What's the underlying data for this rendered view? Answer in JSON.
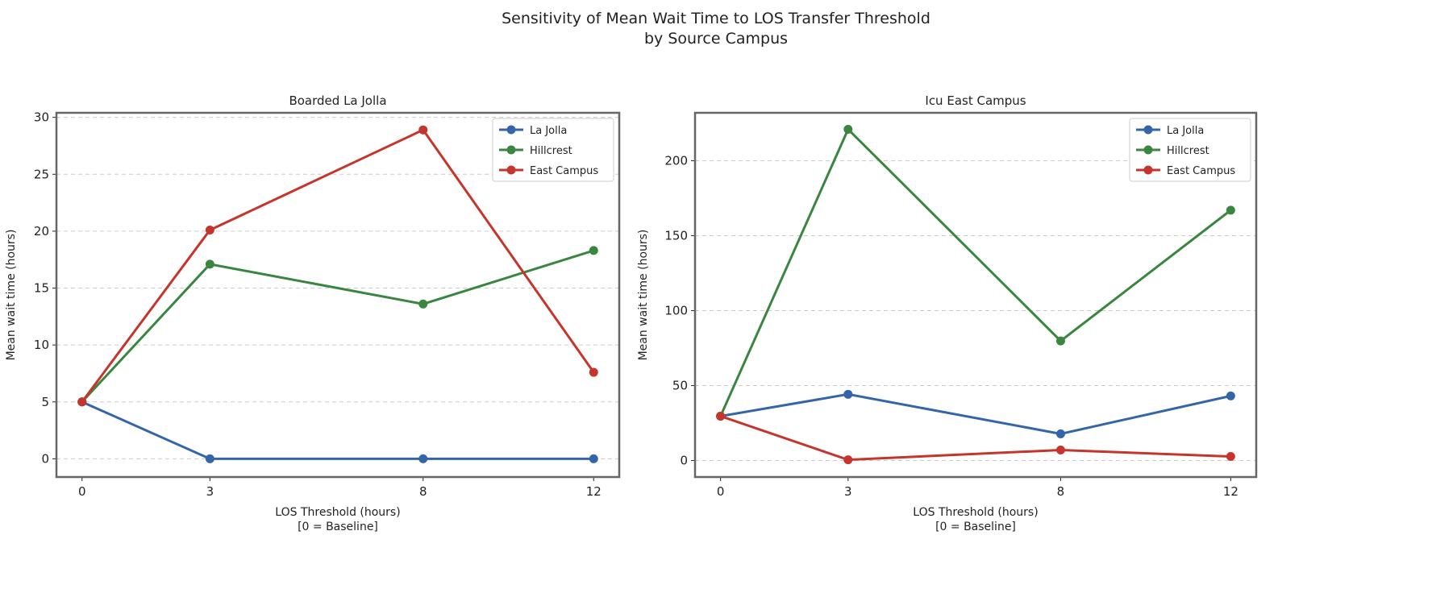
{
  "title_lines": [
    "Sensitivity of Mean Wait Time to LOS Transfer Threshold",
    "by Source Campus"
  ],
  "colors": {
    "La Jolla": "#3465a8",
    "Hillcrest": "#3a8540",
    "East Campus": "#c5352b",
    "frame": "#666666",
    "grid": "#cccccc"
  },
  "chart_data": [
    {
      "type": "line",
      "title": "Boarded La Jolla",
      "xlabel_lines": [
        "LOS Threshold (hours)",
        "[0 = Baseline]"
      ],
      "ylabel": "Mean wait time (hours)",
      "x": [
        0,
        3,
        8,
        12
      ],
      "xticks": [
        "0",
        "3",
        "8",
        "12"
      ],
      "xlim": [
        -0.6,
        12.6
      ],
      "ylim": [
        -1.6,
        30.4
      ],
      "yticks": [
        0,
        5,
        10,
        15,
        20,
        25,
        30
      ],
      "grid": "horizontal dashed",
      "legend": "top-right",
      "series": [
        {
          "name": "La Jolla",
          "values": [
            5.0,
            0.0,
            0.0,
            0.0
          ]
        },
        {
          "name": "Hillcrest",
          "values": [
            5.0,
            17.1,
            13.6,
            18.3
          ]
        },
        {
          "name": "East Campus",
          "values": [
            5.0,
            20.1,
            28.9,
            7.6
          ]
        }
      ]
    },
    {
      "type": "line",
      "title": "Icu East Campus",
      "xlabel_lines": [
        "LOS Threshold (hours)",
        "[0 = Baseline]"
      ],
      "ylabel": "Mean wait time (hours)",
      "x": [
        0,
        3,
        8,
        12
      ],
      "xticks": [
        "0",
        "3",
        "8",
        "12"
      ],
      "xlim": [
        -0.6,
        12.6
      ],
      "ylim": [
        -11,
        232
      ],
      "yticks": [
        0,
        50,
        100,
        150,
        200
      ],
      "grid": "horizontal dashed",
      "legend": "top-right",
      "series": [
        {
          "name": "La Jolla",
          "values": [
            29.6,
            44.2,
            17.8,
            43.1
          ]
        },
        {
          "name": "Hillcrest",
          "values": [
            29.6,
            221.0,
            79.8,
            167.0
          ]
        },
        {
          "name": "East Campus",
          "values": [
            29.6,
            0.5,
            7.0,
            2.7
          ]
        }
      ]
    }
  ]
}
